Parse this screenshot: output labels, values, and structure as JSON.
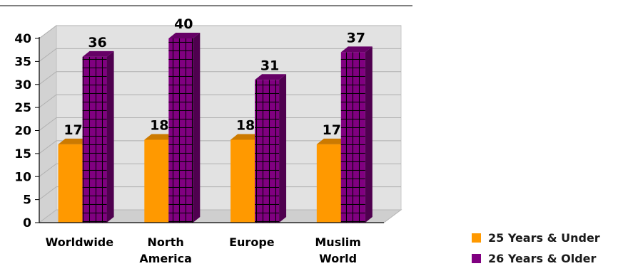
{
  "chart_data": {
    "type": "bar",
    "title": "",
    "xlabel": "",
    "ylabel": "",
    "categories": [
      [
        "Worldwide"
      ],
      [
        "North",
        "America"
      ],
      [
        "Europe"
      ],
      [
        "Muslim",
        "World"
      ]
    ],
    "series": [
      {
        "name": "25 Years & Under",
        "color": "#FF9900",
        "values": [
          17,
          18,
          18,
          17
        ]
      },
      {
        "name": "26 Years & Older",
        "color": "#800080",
        "values": [
          36,
          40,
          31,
          37
        ]
      }
    ],
    "ylim": [
      0,
      40
    ],
    "yticks": [
      "0",
      "5",
      "10",
      "15",
      "20",
      "25",
      "30",
      "35",
      "40"
    ],
    "data_labels": true,
    "grid": true,
    "legend_position": "bottom-right"
  }
}
